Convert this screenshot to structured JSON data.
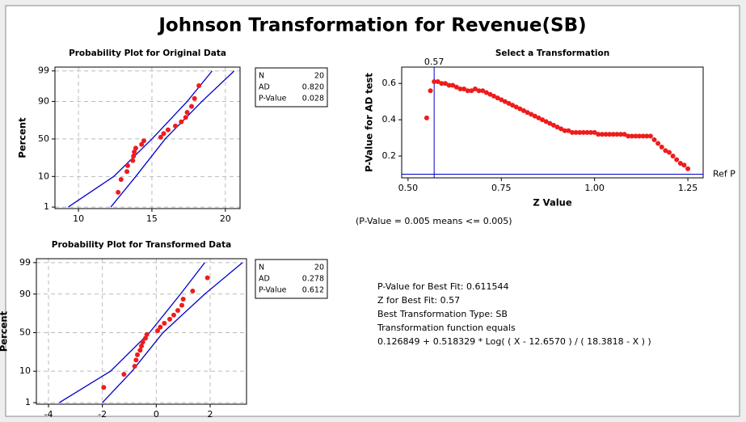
{
  "title": "Johnson Transformation for Revenue(SB)",
  "chart_data": [
    {
      "type": "probability",
      "title": "Probability Plot for Original Data",
      "ylabel": "Percent",
      "xlim": [
        8.4,
        21
      ],
      "xticks": [
        10,
        15,
        20
      ],
      "ylim": [
        0.87,
        99.3
      ],
      "yticks": [
        1,
        10,
        50,
        90,
        99
      ],
      "yscale": "probability",
      "grid": true,
      "color": "#ee1c1c",
      "line_color": "#0000cc",
      "x": [
        12.7,
        12.9,
        13.3,
        13.35,
        13.7,
        13.75,
        13.8,
        13.9,
        14.3,
        14.45,
        15.6,
        15.8,
        16.1,
        16.6,
        17.0,
        17.3,
        17.4,
        17.7,
        17.9,
        18.2
      ],
      "y": [
        3.43,
        8.33,
        13.24,
        18.14,
        23.04,
        27.94,
        32.84,
        37.75,
        42.65,
        47.55,
        52.45,
        57.35,
        62.25,
        67.16,
        72.06,
        76.96,
        81.86,
        86.76,
        91.67,
        96.57
      ],
      "bands": [
        {
          "x": [
            9.3,
            12.4,
            15.0,
            17.4,
            19.1
          ],
          "y": [
            1,
            10,
            50,
            90,
            99
          ]
        },
        {
          "x": [
            12.2,
            13.9,
            15.9,
            18.4,
            20.6
          ],
          "y": [
            1,
            10,
            50,
            90,
            99
          ]
        }
      ],
      "stats": [
        {
          "label": "N",
          "value": "20"
        },
        {
          "label": "AD",
          "value": "0.820"
        },
        {
          "label": "P-Value",
          "value": "0.028"
        }
      ]
    },
    {
      "type": "probability",
      "title": "Probability Plot for Transformed Data",
      "ylabel": "Percent",
      "xlim": [
        -4.45,
        3.35
      ],
      "xticks": [
        -4,
        -2,
        0,
        2
      ],
      "ylim": [
        0.87,
        99.3
      ],
      "yticks": [
        1,
        10,
        50,
        90,
        99
      ],
      "yscale": "probability",
      "grid": true,
      "color": "#ee1c1c",
      "line_color": "#0000cc",
      "x": [
        -1.95,
        -1.2,
        -0.8,
        -0.75,
        -0.7,
        -0.6,
        -0.55,
        -0.5,
        -0.4,
        -0.35,
        0.05,
        0.15,
        0.3,
        0.5,
        0.65,
        0.8,
        0.95,
        1.0,
        1.35,
        1.9
      ],
      "y": [
        3.43,
        8.33,
        13.24,
        18.14,
        23.04,
        27.94,
        32.84,
        37.75,
        42.65,
        47.55,
        52.45,
        57.35,
        62.25,
        67.16,
        72.06,
        76.96,
        81.86,
        86.76,
        91.67,
        96.57
      ],
      "bands": [
        {
          "x": [
            -3.6,
            -1.7,
            -0.25,
            0.9,
            1.8
          ],
          "y": [
            1,
            10,
            50,
            90,
            99
          ]
        },
        {
          "x": [
            -2.0,
            -0.9,
            0.25,
            1.8,
            3.2
          ],
          "y": [
            1,
            10,
            50,
            90,
            99
          ]
        }
      ],
      "stats": [
        {
          "label": "N",
          "value": "20"
        },
        {
          "label": "AD",
          "value": "0.278"
        },
        {
          "label": "P-Value",
          "value": "0.612"
        }
      ]
    },
    {
      "type": "scatter",
      "title": "Select a Transformation",
      "xlabel": "Z Value",
      "ylabel": "P-Value for AD test",
      "xlim": [
        0.483,
        1.291
      ],
      "xticks": [
        {
          "value": 0.5,
          "label": "0.50"
        },
        0.75,
        {
          "value": 1,
          "label": "1.00"
        },
        1.25
      ],
      "ylim": [
        0.08,
        0.69
      ],
      "yticks": [
        0.2,
        0.4,
        0.6
      ],
      "grid": false,
      "color": "#ee1c1c",
      "line_color": "#0000cc",
      "x": [
        0.55,
        0.56,
        0.57,
        0.58,
        0.59,
        0.6,
        0.61,
        0.62,
        0.63,
        0.64,
        0.65,
        0.66,
        0.67,
        0.68,
        0.69,
        0.7,
        0.71,
        0.72,
        0.73,
        0.74,
        0.75,
        0.76,
        0.77,
        0.78,
        0.79,
        0.8,
        0.81,
        0.82,
        0.83,
        0.84,
        0.85,
        0.86,
        0.87,
        0.88,
        0.89,
        0.9,
        0.91,
        0.92,
        0.93,
        0.94,
        0.95,
        0.96,
        0.97,
        0.98,
        0.99,
        1.0,
        1.01,
        1.02,
        1.03,
        1.04,
        1.05,
        1.06,
        1.07,
        1.08,
        1.09,
        1.1,
        1.11,
        1.12,
        1.13,
        1.14,
        1.15,
        1.16,
        1.17,
        1.18,
        1.19,
        1.2,
        1.21,
        1.22,
        1.23,
        1.24,
        1.25
      ],
      "y": [
        0.41,
        0.56,
        0.61,
        0.61,
        0.6,
        0.6,
        0.59,
        0.59,
        0.58,
        0.57,
        0.57,
        0.56,
        0.56,
        0.57,
        0.56,
        0.56,
        0.55,
        0.54,
        0.53,
        0.52,
        0.51,
        0.5,
        0.49,
        0.48,
        0.47,
        0.46,
        0.45,
        0.44,
        0.43,
        0.42,
        0.41,
        0.4,
        0.39,
        0.38,
        0.37,
        0.36,
        0.35,
        0.34,
        0.34,
        0.33,
        0.33,
        0.33,
        0.33,
        0.33,
        0.33,
        0.33,
        0.32,
        0.32,
        0.32,
        0.32,
        0.32,
        0.32,
        0.32,
        0.32,
        0.31,
        0.31,
        0.31,
        0.31,
        0.31,
        0.31,
        0.31,
        0.29,
        0.27,
        0.25,
        0.23,
        0.22,
        0.2,
        0.18,
        0.16,
        0.15,
        0.13
      ],
      "ref_x": 0.57,
      "ref_y": 0.1,
      "ref_y_label": "Ref P"
    }
  ],
  "notes": [
    "(P-Value = 0.005 means <= 0.005)",
    "P-Value for Best Fit: 0.611544",
    "Z for Best Fit: 0.57",
    "Best Transformation Type: SB",
    "Transformation function equals",
    "0.126849 + 0.518329 * Log( ( X - 12.6570 ) / ( 18.3818 - X ) )"
  ]
}
